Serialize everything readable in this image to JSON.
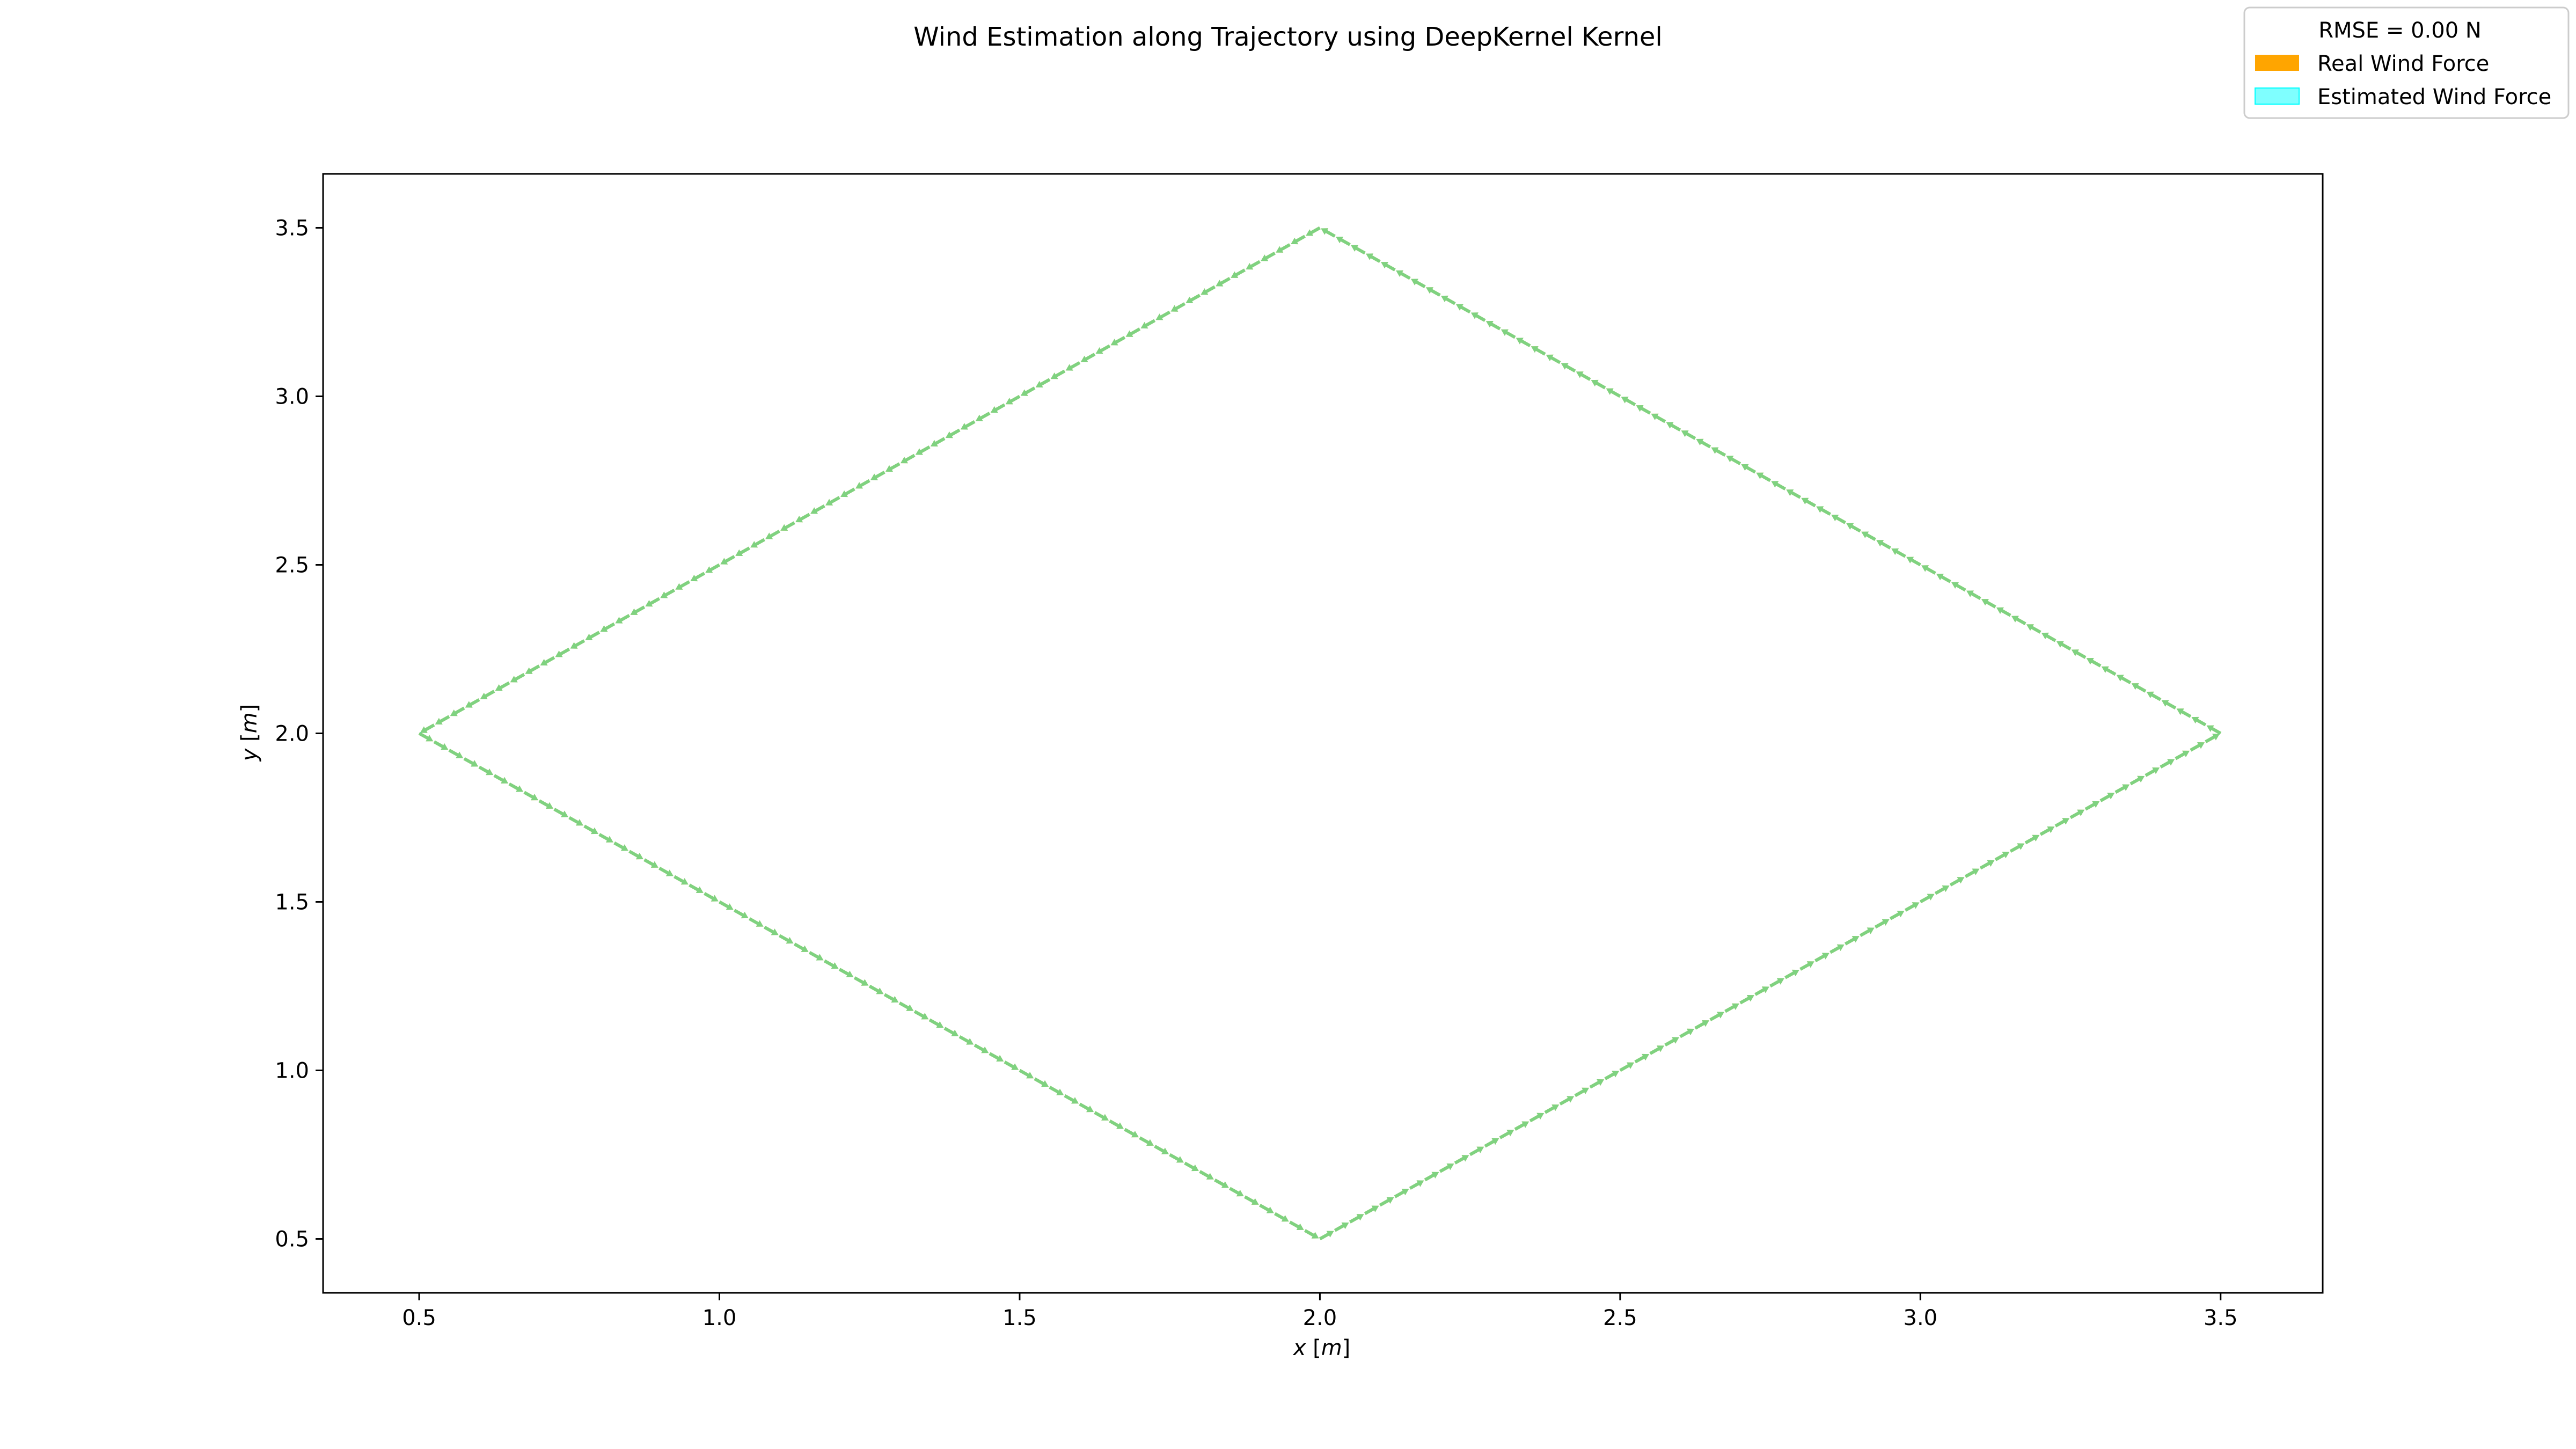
{
  "chart_data": {
    "type": "quiver",
    "title": "Wind Estimation along Trajectory using DeepKernel Kernel",
    "xlabel_var": "x",
    "xlabel_unit": "m",
    "ylabel_var": "y",
    "ylabel_unit": "m",
    "xlim": [
      0.34,
      3.67
    ],
    "ylim": [
      0.34,
      3.66
    ],
    "xticks": [
      0.5,
      1.0,
      1.5,
      2.0,
      2.5,
      3.0,
      3.5
    ],
    "yticks": [
      0.5,
      1.0,
      1.5,
      2.0,
      2.5,
      3.0,
      3.5
    ],
    "trajectory_vertices": [
      [
        2.0,
        0.5
      ],
      [
        3.5,
        2.0
      ],
      [
        2.0,
        3.5
      ],
      [
        0.5,
        2.0
      ],
      [
        2.0,
        0.5
      ]
    ],
    "legend": {
      "title": "RMSE = 0.00 N",
      "placement": "top-right",
      "entries": [
        {
          "label": "Real Wind Force",
          "color": "#ffa500"
        },
        {
          "label": "Estimated Wind Force",
          "color": "#00ffff"
        }
      ]
    },
    "series": [
      {
        "name": "Real Wind Force",
        "color": "#ffa500",
        "opacity": 1.0
      },
      {
        "name": "Estimated Wind Force",
        "color": "#00ffff",
        "opacity": 0.5
      }
    ],
    "grid": false
  }
}
